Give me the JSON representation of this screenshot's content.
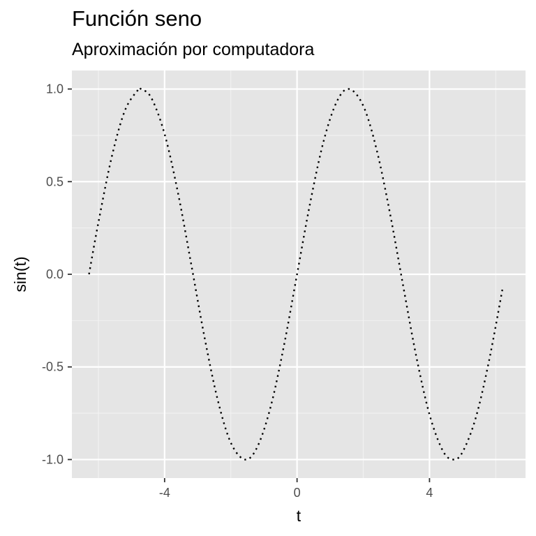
{
  "chart_data": {
    "type": "line",
    "title": "Función seno",
    "subtitle": "Aproximación por computadora",
    "xlabel": "t",
    "ylabel": "sin(t)",
    "xlim": [
      -6.8,
      6.9
    ],
    "ylim": [
      -1.1,
      1.1
    ],
    "x_ticks": [
      -4,
      0,
      4
    ],
    "x_tick_labels": [
      "-4",
      "0",
      "4"
    ],
    "y_ticks": [
      -1.0,
      -0.5,
      0.0,
      0.5,
      1.0
    ],
    "y_tick_labels": [
      "-1.0",
      "-0.5",
      "0.0",
      "0.5",
      "1.0"
    ],
    "grid": true,
    "line_style": "dotted",
    "line_color": "#000000",
    "panel_color": "#e5e5e5",
    "series": [
      {
        "x": [
          -6.2832,
          -6.0,
          -5.6,
          -5.2,
          -4.8,
          -4.7124,
          -4.4,
          -4.0,
          -3.6,
          -3.2,
          -2.8,
          -2.4,
          -2.0,
          -1.5708,
          -1.2,
          -0.8,
          -0.4,
          0.0,
          0.4,
          0.8,
          1.2,
          1.5708,
          2.0,
          2.4,
          2.8,
          3.2,
          3.6,
          4.0,
          4.4,
          4.7124,
          5.0,
          5.4,
          5.8,
          6.2
        ],
        "y": [
          0.0,
          0.279,
          0.631,
          0.883,
          0.996,
          1.0,
          0.952,
          0.757,
          0.443,
          0.058,
          -0.335,
          -0.675,
          -0.909,
          -1.0,
          -0.932,
          -0.717,
          -0.389,
          0.0,
          0.389,
          0.717,
          0.932,
          1.0,
          0.909,
          0.675,
          0.335,
          -0.058,
          -0.443,
          -0.757,
          -0.952,
          -1.0,
          -0.959,
          -0.773,
          -0.465,
          -0.083
        ]
      }
    ]
  }
}
